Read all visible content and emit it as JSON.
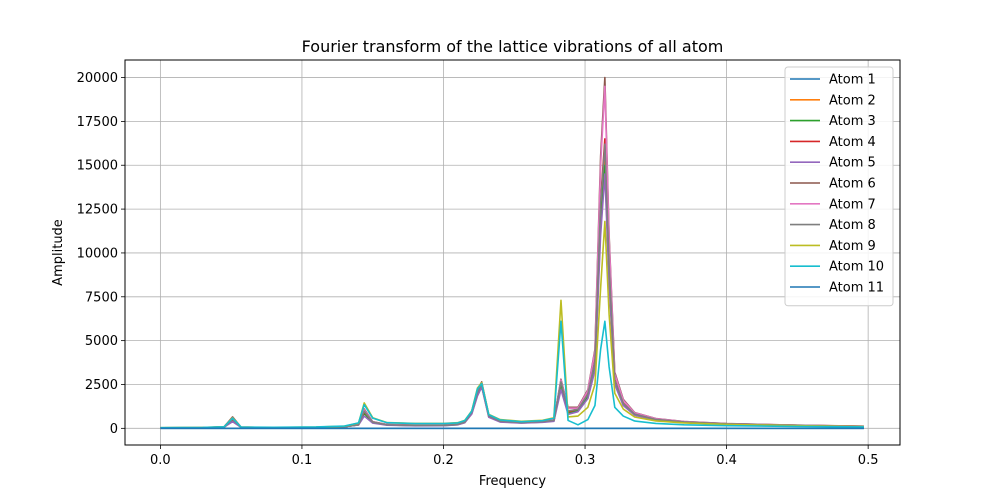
{
  "chart_data": {
    "type": "line",
    "title": "Fourier transform of the lattice vibrations of all atom",
    "xlabel": "Frequency",
    "ylabel": "Amplitude",
    "xlim": [
      -0.025,
      0.5225
    ],
    "ylim": [
      -950,
      21000
    ],
    "xticks": [
      0.0,
      0.1,
      0.2,
      0.3,
      0.4,
      0.5
    ],
    "xtick_labels": [
      "0.0",
      "0.1",
      "0.2",
      "0.3",
      "0.4",
      "0.5"
    ],
    "yticks": [
      0,
      2500,
      5000,
      7500,
      10000,
      12500,
      15000,
      17500,
      20000
    ],
    "ytick_labels": [
      "0",
      "2500",
      "5000",
      "7500",
      "10000",
      "12500",
      "15000",
      "17500",
      "20000"
    ],
    "grid": true,
    "legend_position": "top-right",
    "x": [
      0.0,
      0.03,
      0.045,
      0.051,
      0.057,
      0.08,
      0.11,
      0.13,
      0.14,
      0.144,
      0.15,
      0.16,
      0.18,
      0.2,
      0.21,
      0.215,
      0.22,
      0.224,
      0.227,
      0.232,
      0.24,
      0.255,
      0.27,
      0.278,
      0.283,
      0.288,
      0.295,
      0.302,
      0.307,
      0.311,
      0.314,
      0.317,
      0.321,
      0.327,
      0.335,
      0.35,
      0.37,
      0.4,
      0.45,
      0.497
    ],
    "series": [
      {
        "name": "Atom 1",
        "color": "#1f77b4",
        "values": [
          0,
          0,
          0,
          0,
          0,
          0,
          0,
          0,
          0,
          0,
          0,
          0,
          0,
          0,
          0,
          0,
          0,
          0,
          0,
          0,
          0,
          0,
          0,
          0,
          0,
          0,
          0,
          0,
          0,
          0,
          0,
          0,
          0,
          0,
          0,
          0,
          0,
          0,
          0,
          0
        ]
      },
      {
        "name": "Atom 2",
        "color": "#ff7f0e",
        "values": [
          30,
          40,
          70,
          450,
          60,
          40,
          50,
          90,
          200,
          900,
          350,
          200,
          160,
          170,
          220,
          350,
          900,
          2000,
          2500,
          700,
          400,
          330,
          380,
          450,
          2600,
          900,
          1050,
          1900,
          3700,
          12000,
          15500,
          9000,
          2700,
          1400,
          800,
          500,
          360,
          250,
          170,
          110
        ]
      },
      {
        "name": "Atom 3",
        "color": "#2ca02c",
        "values": [
          30,
          40,
          70,
          420,
          60,
          40,
          50,
          90,
          200,
          850,
          330,
          190,
          150,
          160,
          210,
          330,
          850,
          1900,
          2400,
          650,
          380,
          310,
          360,
          420,
          2500,
          850,
          1000,
          1800,
          3500,
          11500,
          15000,
          8500,
          2600,
          1350,
          780,
          480,
          350,
          240,
          160,
          100
        ]
      },
      {
        "name": "Atom 4",
        "color": "#d62728",
        "values": [
          30,
          40,
          80,
          500,
          60,
          40,
          50,
          90,
          210,
          950,
          360,
          210,
          170,
          180,
          230,
          360,
          950,
          2100,
          2550,
          720,
          410,
          340,
          390,
          460,
          2700,
          950,
          1100,
          2000,
          3900,
          13000,
          16500,
          9500,
          2800,
          1450,
          820,
          510,
          370,
          260,
          175,
          115
        ]
      },
      {
        "name": "Atom 5",
        "color": "#9467bd",
        "values": [
          30,
          40,
          70,
          380,
          60,
          40,
          50,
          90,
          190,
          700,
          300,
          180,
          140,
          150,
          200,
          320,
          820,
          1850,
          2350,
          630,
          360,
          300,
          340,
          400,
          2200,
          800,
          950,
          1700,
          3300,
          11000,
          14500,
          8200,
          2500,
          1300,
          750,
          460,
          340,
          230,
          155,
          95
        ]
      },
      {
        "name": "Atom 6",
        "color": "#8c564b",
        "values": [
          30,
          40,
          90,
          650,
          70,
          40,
          50,
          90,
          220,
          1100,
          380,
          220,
          180,
          190,
          240,
          380,
          1000,
          2200,
          2650,
          750,
          430,
          350,
          400,
          480,
          2800,
          1200,
          1200,
          2200,
          4500,
          15500,
          20000,
          11000,
          3200,
          1650,
          900,
          560,
          390,
          270,
          180,
          120
        ]
      },
      {
        "name": "Atom 7",
        "color": "#e377c2",
        "values": [
          30,
          40,
          85,
          600,
          65,
          40,
          50,
          90,
          215,
          1050,
          370,
          215,
          175,
          185,
          235,
          370,
          980,
          2150,
          2600,
          740,
          420,
          345,
          395,
          470,
          2750,
          1150,
          1150,
          2150,
          4400,
          15000,
          19500,
          10800,
          3100,
          1600,
          880,
          550,
          385,
          265,
          178,
          118
        ]
      },
      {
        "name": "Atom 8",
        "color": "#7f7f7f",
        "values": [
          30,
          40,
          75,
          520,
          60,
          40,
          50,
          90,
          205,
          980,
          350,
          205,
          165,
          175,
          225,
          355,
          930,
          2050,
          2500,
          710,
          405,
          335,
          385,
          455,
          2650,
          1000,
          1080,
          1950,
          3800,
          12800,
          16200,
          9300,
          2750,
          1420,
          810,
          505,
          365,
          255,
          172,
          112
        ]
      },
      {
        "name": "Atom 9",
        "color": "#bcbd22",
        "values": [
          40,
          50,
          90,
          600,
          70,
          50,
          70,
          120,
          300,
          1450,
          600,
          330,
          280,
          280,
          320,
          450,
          1000,
          2300,
          2600,
          800,
          500,
          400,
          460,
          600,
          7300,
          650,
          700,
          1200,
          2500,
          8000,
          11800,
          6500,
          2000,
          1100,
          650,
          420,
          310,
          220,
          150,
          95
        ]
      },
      {
        "name": "Atom 10",
        "color": "#17becf",
        "values": [
          40,
          50,
          90,
          580,
          70,
          60,
          80,
          130,
          310,
          1350,
          580,
          320,
          270,
          270,
          310,
          440,
          980,
          2250,
          2550,
          780,
          480,
          380,
          440,
          580,
          6100,
          450,
          200,
          500,
          1300,
          4500,
          6100,
          3500,
          1200,
          700,
          420,
          280,
          200,
          150,
          110,
          80
        ]
      },
      {
        "name": "Atom 11",
        "color": "#1f77b4",
        "values": [
          0,
          0,
          0,
          0,
          0,
          0,
          0,
          0,
          0,
          0,
          0,
          0,
          0,
          0,
          0,
          0,
          0,
          0,
          0,
          0,
          0,
          0,
          0,
          0,
          0,
          0,
          0,
          0,
          0,
          0,
          0,
          0,
          0,
          0,
          0,
          0,
          0,
          0,
          0,
          0
        ]
      }
    ]
  }
}
